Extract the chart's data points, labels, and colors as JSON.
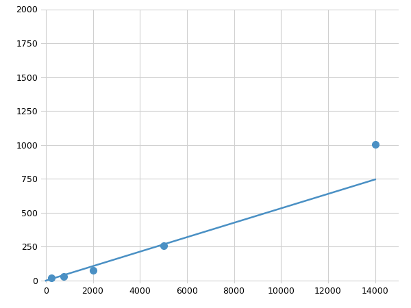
{
  "x": [
    0,
    250,
    750,
    2000,
    5000,
    14000
  ],
  "y": [
    0,
    20,
    30,
    75,
    255,
    1005
  ],
  "line_color": "#4a90c4",
  "marker_color": "#4a90c4",
  "marker_size": 7,
  "xlim": [
    -200,
    15000
  ],
  "ylim": [
    -20,
    2000
  ],
  "xticks": [
    0,
    2000,
    4000,
    6000,
    8000,
    10000,
    12000,
    14000
  ],
  "yticks": [
    0,
    250,
    500,
    750,
    1000,
    1250,
    1500,
    1750,
    2000
  ],
  "grid_color": "#d0d0d0",
  "background_color": "#ffffff",
  "figsize": [
    6.0,
    4.5
  ],
  "dpi": 100
}
